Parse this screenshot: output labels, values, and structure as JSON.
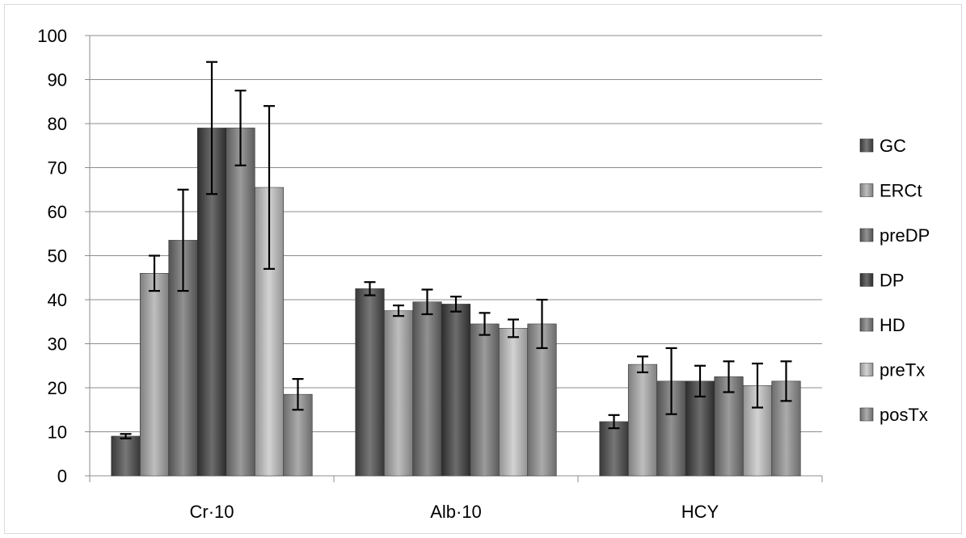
{
  "chart_data": {
    "type": "bar",
    "categories": [
      "Cr·10",
      "Alb·10",
      "HCY"
    ],
    "ylim": [
      0,
      100
    ],
    "yticks": [
      "0",
      "10",
      "20",
      "30",
      "40",
      "50",
      "60",
      "70",
      "80",
      "90",
      "100"
    ],
    "grid": true,
    "legend_position": "right",
    "series": [
      {
        "name": "GC",
        "color": "#4a4a4a",
        "values": [
          9,
          42.5,
          12.3
        ],
        "errors": [
          0.5,
          1.5,
          1.5
        ]
      },
      {
        "name": "ERCt",
        "color": "#a9a9a9",
        "values": [
          46,
          37.5,
          25.3
        ],
        "errors": [
          4,
          1.2,
          1.8
        ]
      },
      {
        "name": "preDP",
        "color": "#6d6d6d",
        "values": [
          53.5,
          39.5,
          21.5
        ],
        "errors": [
          11.5,
          2.8,
          7.5
        ]
      },
      {
        "name": "DP",
        "color": "#3c3c3c",
        "values": [
          79,
          39,
          21.5
        ],
        "errors": [
          15,
          1.7,
          3.5
        ]
      },
      {
        "name": "HD",
        "color": "#7a7a7a",
        "values": [
          79,
          34.5,
          22.5
        ],
        "errors": [
          8.5,
          2.5,
          3.5
        ]
      },
      {
        "name": "preTx",
        "color": "#c4c4c4",
        "values": [
          65.5,
          33.5,
          20.5
        ],
        "errors": [
          18.5,
          2,
          5
        ]
      },
      {
        "name": "posTx",
        "color": "#909090",
        "values": [
          18.5,
          34.5,
          21.5
        ],
        "errors": [
          3.5,
          5.5,
          4.5
        ]
      }
    ]
  }
}
